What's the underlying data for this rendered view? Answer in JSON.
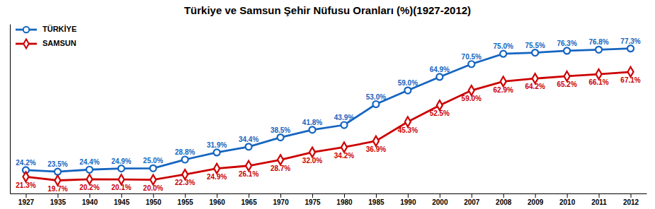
{
  "chart_data": {
    "type": "line",
    "title": "Türkiye ve Samsun Şehir Nüfusu Oranları (%)(1927-2012)",
    "categories": [
      "1927",
      "1935",
      "1940",
      "1945",
      "1950",
      "1955",
      "1960",
      "1965",
      "1970",
      "1975",
      "1980",
      "1985",
      "1990",
      "2000",
      "2007",
      "2008",
      "2009",
      "2010",
      "2011",
      "2012"
    ],
    "series": [
      {
        "name": "TÜRKİYE",
        "color": "#1565c0",
        "marker": "circle",
        "line_style": "solid",
        "values": [
          24.2,
          23.5,
          24.4,
          24.9,
          25.0,
          28.8,
          31.9,
          34.4,
          38.5,
          41.8,
          43.9,
          53.0,
          59.0,
          64.9,
          70.5,
          75.0,
          75.5,
          76.3,
          76.8,
          77.3
        ],
        "value_labels": [
          "24.2%",
          "23.5%",
          "24.4%",
          "24.9%",
          "25.0%",
          "28.8%",
          "31.9%",
          "34.4%",
          "38.5%",
          "41.8%",
          "43.9%",
          "53.0%",
          "59.0%",
          "64.9%",
          "70.5%",
          "75.0%",
          "75.5%",
          "76.3%",
          "76.8%",
          "77.3%"
        ]
      },
      {
        "name": "SAMSUN",
        "color": "#cc0000",
        "marker": "diamond",
        "line_style": "solid",
        "values": [
          21.3,
          19.7,
          20.2,
          20.1,
          20.0,
          22.3,
          24.9,
          26.1,
          28.7,
          32.0,
          34.2,
          36.9,
          45.3,
          52.5,
          59.0,
          62.9,
          64.2,
          65.2,
          66.1,
          67.1
        ],
        "value_labels": [
          "21.3%",
          "19.7%",
          "20.2%",
          "20.1%",
          "20.0%",
          "22.3%",
          "24.9%",
          "26.1%",
          "28.7%",
          "32.0%",
          "34.2%",
          "36.9%",
          "45.3%",
          "52.5%",
          "59.0%",
          "62.9%",
          "64.2%",
          "65.2%",
          "66.1%",
          "67.1%"
        ]
      }
    ],
    "ylim": [
      14,
      88
    ],
    "tick_labels": "x",
    "data_labels": true,
    "grid": false,
    "legend": "upper left"
  }
}
